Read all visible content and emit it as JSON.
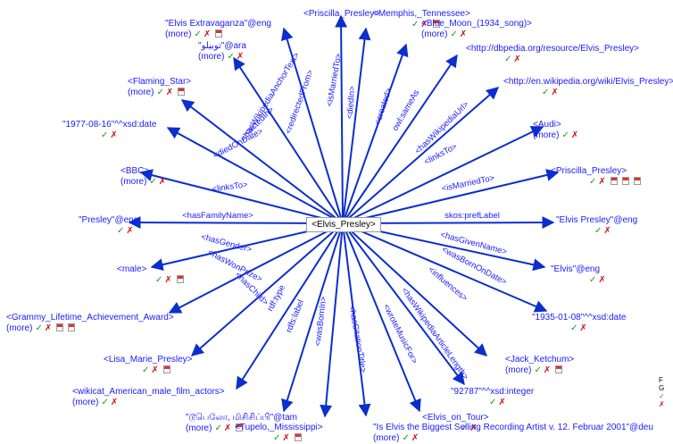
{
  "center": "<Elvis_Presley>",
  "more_label": "(more)",
  "check": "✓",
  "cross": "✗",
  "edges": [
    {
      "id": "e1",
      "label": "<isMarriedTo>"
    },
    {
      "id": "e2",
      "label": "<diedIn>"
    },
    {
      "id": "e3",
      "label": "<redirectedFrom>"
    },
    {
      "id": "e4",
      "label": "<created>"
    },
    {
      "id": "e5",
      "label": "owl:sameAs"
    },
    {
      "id": "e6",
      "label": "<hasWikipediaAnchorText>"
    },
    {
      "id": "e7",
      "label": "<actedIn>"
    },
    {
      "id": "e8",
      "label": "<hasWikipediaUrl>"
    },
    {
      "id": "e9",
      "label": "<diedOnDate>"
    },
    {
      "id": "e10",
      "label": "<linksTo>"
    },
    {
      "id": "e11",
      "label": "<linksTo>"
    },
    {
      "id": "e12",
      "label": "<isMarriedTo>"
    },
    {
      "id": "e13",
      "label": "<hasFamilyName>"
    },
    {
      "id": "e14",
      "label": "skos:prefLabel"
    },
    {
      "id": "e15",
      "label": "<hasGender>"
    },
    {
      "id": "e16",
      "label": "<hasGivenName>"
    },
    {
      "id": "e17",
      "label": "<hasWonPrize>"
    },
    {
      "id": "e18",
      "label": "<wasBornOnDate>"
    },
    {
      "id": "e19",
      "label": "<influences>"
    },
    {
      "id": "e20",
      "label": "<hasChild>"
    },
    {
      "id": "e21",
      "label": "<hasWikipediaArticleLength>"
    },
    {
      "id": "e22",
      "label": "rdf:type"
    },
    {
      "id": "e23",
      "label": "<wroteMusicFor>"
    },
    {
      "id": "e24",
      "label": "rdfs:label"
    },
    {
      "id": "e25",
      "label": "<hasCitationTitle>"
    },
    {
      "id": "e26",
      "label": "<wasBornIn>"
    }
  ],
  "nodes": [
    {
      "id": "n_priscilla_top",
      "label": "<Priscilla_Presley>"
    },
    {
      "id": "n_memphis",
      "label": "<Memphis,_Tennessee>"
    },
    {
      "id": "n_elvis_extrav",
      "label": "\"Elvis Extravaganza\"@eng"
    },
    {
      "id": "n_bluemoon",
      "label": "<Blue_Moon_(1934_song)>"
    },
    {
      "id": "n_arabic",
      "label": "\"توبيلو\"@ara"
    },
    {
      "id": "n_dbpedia",
      "label": "<http://dbpedia.org/resource/Elvis_Presley>"
    },
    {
      "id": "n_flaming",
      "label": "<Flaming_Star>"
    },
    {
      "id": "n_wikipedia",
      "label": "<http://en.wikipedia.org/wiki/Elvis_Presley>"
    },
    {
      "id": "n_deathdate",
      "label": "\"1977-08-16\"^^xsd:date"
    },
    {
      "id": "n_audi",
      "label": "<Audi>"
    },
    {
      "id": "n_bbc",
      "label": "<BBC>"
    },
    {
      "id": "n_priscilla_r",
      "label": "<Priscilla_Presley>"
    },
    {
      "id": "n_presley",
      "label": "\"Presley\"@eng"
    },
    {
      "id": "n_elvispresley",
      "label": "\"Elvis Presley\"@eng"
    },
    {
      "id": "n_male",
      "label": "<male>"
    },
    {
      "id": "n_elvis",
      "label": "\"Elvis\"@eng"
    },
    {
      "id": "n_grammy",
      "label": "<Grammy_Lifetime_Achievement_Award>"
    },
    {
      "id": "n_birthdate",
      "label": "\"1935-01-08\"^^xsd:date"
    },
    {
      "id": "n_lisa",
      "label": "<Lisa_Marie_Presley>"
    },
    {
      "id": "n_jack",
      "label": "<Jack_Ketchum>"
    },
    {
      "id": "n_wikicat",
      "label": "<wikicat_American_male_film_actors>"
    },
    {
      "id": "n_integer",
      "label": "\"92787\"^^xsd:integer"
    },
    {
      "id": "n_tamil",
      "label": "\"டூபெலோ, மிசிசிப்பி\"@tam"
    },
    {
      "id": "n_tupelo",
      "label": "<Tupelo,_Mississippi>"
    },
    {
      "id": "n_ontour",
      "label": "<Elvis_on_Tour>"
    },
    {
      "id": "n_citation",
      "label": "\"Is Elvis the Biggest Selling Recording Artist v. 12. Februar 2001\"@deu"
    }
  ],
  "side": {
    "line1": "F",
    "line2": "G"
  }
}
